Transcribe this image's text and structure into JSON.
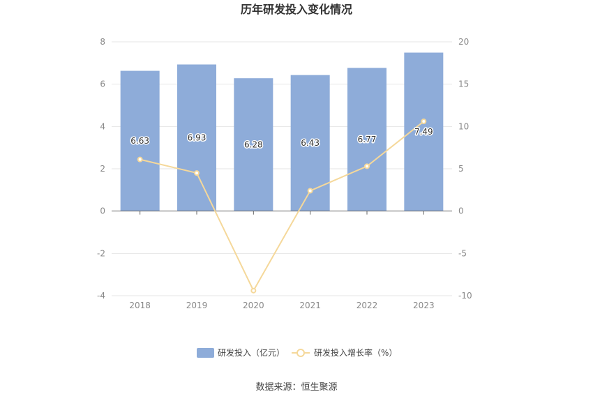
{
  "chart_data": {
    "type": "bar",
    "title": "历年研发投入变化情况",
    "categories": [
      "2018",
      "2019",
      "2020",
      "2021",
      "2022",
      "2023"
    ],
    "series": [
      {
        "name": "研发投入（亿元）",
        "type": "bar",
        "axis": "left",
        "color": "#8eacd9",
        "values": [
          6.63,
          6.93,
          6.28,
          6.43,
          6.77,
          7.49
        ],
        "labels": [
          "6.63",
          "6.93",
          "6.28",
          "6.43",
          "6.77",
          "7.49"
        ]
      },
      {
        "name": "研发投入增长率（%）",
        "type": "line",
        "axis": "right",
        "color": "#f5d89a",
        "values": [
          6.1,
          4.5,
          -9.4,
          2.4,
          5.3,
          10.6
        ]
      }
    ],
    "y_left": {
      "min": -4,
      "max": 8,
      "ticks": [
        8,
        6,
        4,
        2,
        0,
        -2,
        -4
      ]
    },
    "y_right": {
      "min": -10,
      "max": 20,
      "ticks": [
        20,
        15,
        10,
        5,
        0,
        -5,
        -10
      ]
    },
    "grid": true,
    "legend_position": "bottom"
  },
  "source_note": "数据来源：恒生聚源"
}
